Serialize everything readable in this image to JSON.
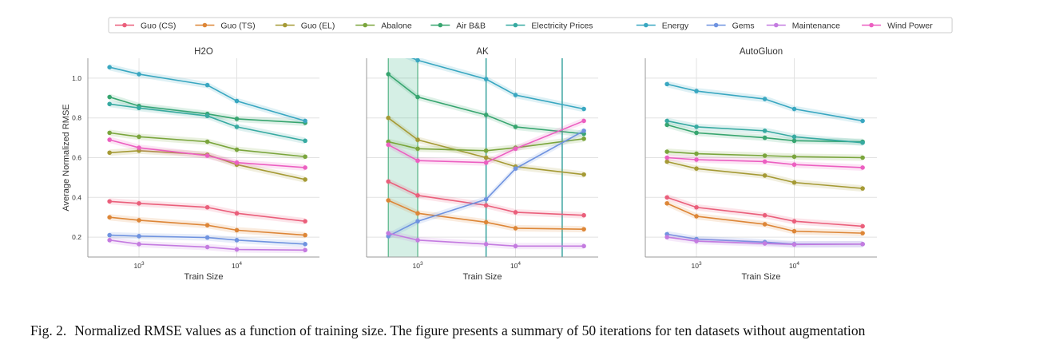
{
  "caption": {
    "label": "Fig. 2.",
    "text": "Normalized RMSE values as a function of training size. The figure presents a summary of 50 iterations for ten datasets without augmentation"
  },
  "legend": {
    "placement": "top"
  },
  "chart_data": [
    {
      "type": "line",
      "title": "H2O",
      "xlabel": "Train Size",
      "ylabel": "Average Normalized RMSE",
      "xscale": "log",
      "xlim": [
        300,
        70000
      ],
      "ylim": [
        0.1,
        1.1
      ],
      "yticks": [
        "0.2",
        "0.4",
        "0.6",
        "0.8",
        "1.0"
      ],
      "xticks": [
        {
          "value": 1000,
          "base": "10",
          "exp": "3"
        },
        {
          "value": 10000,
          "base": "10",
          "exp": "4"
        }
      ],
      "grid": true,
      "x": [
        500,
        1000,
        5000,
        10000,
        50000
      ],
      "series": [
        {
          "name": "Guo (CS)",
          "color": "#ea5f7b",
          "values": [
            0.38,
            0.37,
            0.35,
            0.32,
            0.28
          ]
        },
        {
          "name": "Guo (TS)",
          "color": "#dd8637",
          "values": [
            0.3,
            0.285,
            0.26,
            0.235,
            0.21
          ]
        },
        {
          "name": "Guo (EL)",
          "color": "#a59a35",
          "values": [
            0.625,
            0.635,
            0.615,
            0.565,
            0.49
          ]
        },
        {
          "name": "Abalone",
          "color": "#7aa53c",
          "values": [
            0.725,
            0.705,
            0.68,
            0.64,
            0.605
          ]
        },
        {
          "name": "Air B&B",
          "color": "#37a56f",
          "values": [
            0.905,
            0.86,
            0.82,
            0.795,
            0.775
          ]
        },
        {
          "name": "Electricity Prices",
          "color": "#37aaa1",
          "values": [
            0.87,
            0.85,
            0.81,
            0.755,
            0.685
          ]
        },
        {
          "name": "Energy",
          "color": "#39a7c1",
          "values": [
            1.055,
            1.02,
            0.965,
            0.885,
            0.785
          ]
        },
        {
          "name": "Gems",
          "color": "#6f93e0",
          "values": [
            0.21,
            0.205,
            0.198,
            0.185,
            0.165
          ]
        },
        {
          "name": "Maintenance",
          "color": "#c47be0",
          "values": [
            0.185,
            0.165,
            0.15,
            0.138,
            0.135
          ]
        },
        {
          "name": "Wind Power",
          "color": "#ec5fc1",
          "values": [
            0.69,
            0.65,
            0.61,
            0.575,
            0.55
          ]
        }
      ]
    },
    {
      "type": "line",
      "title": "AK",
      "xlabel": "Train Size",
      "ylabel": "",
      "xscale": "log",
      "xlim": [
        300,
        70000
      ],
      "ylim": [
        0.1,
        1.1
      ],
      "xticks": [
        {
          "value": 1000,
          "base": "10",
          "exp": "3"
        },
        {
          "value": 10000,
          "base": "10",
          "exp": "4"
        }
      ],
      "grid": true,
      "x": [
        500,
        1000,
        5000,
        10000,
        50000
      ],
      "series": [
        {
          "name": "Guo (CS)",
          "color": "#ea5f7b",
          "values": [
            0.48,
            0.41,
            0.36,
            0.325,
            0.31
          ]
        },
        {
          "name": "Guo (TS)",
          "color": "#dd8637",
          "values": [
            0.385,
            0.32,
            0.275,
            0.245,
            0.24
          ]
        },
        {
          "name": "Guo (EL)",
          "color": "#a59a35",
          "values": [
            0.8,
            0.69,
            0.6,
            0.555,
            0.515
          ]
        },
        {
          "name": "Abalone",
          "color": "#7aa53c",
          "values": [
            0.68,
            0.645,
            0.635,
            0.65,
            0.695
          ]
        },
        {
          "name": "Air B&B",
          "color": "#37a56f",
          "values": [
            1.02,
            0.905,
            0.815,
            0.755,
            0.72
          ]
        },
        {
          "name": "Electricity Prices",
          "color": "#37aaa1",
          "values": [
            null,
            null,
            null,
            null,
            null
          ]
        },
        {
          "name": "Energy",
          "color": "#39a7c1",
          "values": [
            1.15,
            1.09,
            0.995,
            0.915,
            0.845
          ]
        },
        {
          "name": "Gems",
          "color": "#6f93e0",
          "values": [
            0.205,
            0.28,
            0.39,
            0.545,
            0.735
          ]
        },
        {
          "name": "Maintenance",
          "color": "#c47be0",
          "values": [
            0.22,
            0.185,
            0.165,
            0.155,
            0.155
          ]
        },
        {
          "name": "Wind Power",
          "color": "#ec5fc1",
          "values": [
            0.665,
            0.585,
            0.575,
            0.645,
            0.785
          ]
        }
      ],
      "vlines": [
        5000,
        30000
      ],
      "vspan": [
        500,
        1000
      ]
    },
    {
      "type": "line",
      "title": "AutoGluon",
      "xlabel": "Train Size",
      "ylabel": "",
      "xscale": "log",
      "xlim": [
        300,
        70000
      ],
      "ylim": [
        0.1,
        1.1
      ],
      "xticks": [
        {
          "value": 1000,
          "base": "10",
          "exp": "3"
        },
        {
          "value": 10000,
          "base": "10",
          "exp": "4"
        }
      ],
      "grid": true,
      "x": [
        500,
        1000,
        5000,
        10000,
        50000
      ],
      "series": [
        {
          "name": "Guo (CS)",
          "color": "#ea5f7b",
          "values": [
            0.4,
            0.35,
            0.31,
            0.28,
            0.255
          ]
        },
        {
          "name": "Guo (TS)",
          "color": "#dd8637",
          "values": [
            0.37,
            0.305,
            0.265,
            0.23,
            0.22
          ]
        },
        {
          "name": "Guo (EL)",
          "color": "#a59a35",
          "values": [
            0.58,
            0.545,
            0.51,
            0.475,
            0.445
          ]
        },
        {
          "name": "Abalone",
          "color": "#7aa53c",
          "values": [
            0.63,
            0.62,
            0.61,
            0.605,
            0.6
          ]
        },
        {
          "name": "Air B&B",
          "color": "#37a56f",
          "values": [
            0.765,
            0.725,
            0.7,
            0.685,
            0.68
          ]
        },
        {
          "name": "Electricity Prices",
          "color": "#37aaa1",
          "values": [
            0.785,
            0.755,
            0.735,
            0.705,
            0.675
          ]
        },
        {
          "name": "Energy",
          "color": "#39a7c1",
          "values": [
            0.97,
            0.935,
            0.895,
            0.845,
            0.785
          ]
        },
        {
          "name": "Gems",
          "color": "#6f93e0",
          "values": [
            0.215,
            0.19,
            0.175,
            0.165,
            0.165
          ]
        },
        {
          "name": "Maintenance",
          "color": "#c47be0",
          "values": [
            0.2,
            0.18,
            0.168,
            0.163,
            0.165
          ]
        },
        {
          "name": "Wind Power",
          "color": "#ec5fc1",
          "values": [
            0.6,
            0.59,
            0.58,
            0.565,
            0.55
          ]
        }
      ]
    }
  ]
}
